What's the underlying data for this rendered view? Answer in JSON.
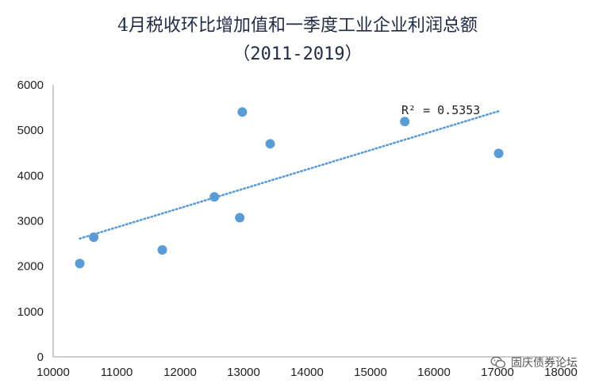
{
  "chart_data": {
    "type": "scatter",
    "title": "4月税收环比增加值和一季度工业企业利润总额",
    "subtitle": "（2011-2019）",
    "xlabel": "",
    "ylabel": "",
    "xlim": [
      10000,
      18000
    ],
    "ylim": [
      0,
      6000
    ],
    "x_ticks": [
      10000,
      11000,
      12000,
      13000,
      14000,
      15000,
      16000,
      17000,
      18000
    ],
    "y_ticks": [
      0,
      1000,
      2000,
      3000,
      4000,
      5000,
      6000
    ],
    "x_tick_labels": [
      "10000",
      "11000",
      "12000",
      "13000",
      "14000",
      "15000",
      "16000",
      "17000",
      "18000"
    ],
    "y_tick_labels": [
      "0",
      "1000",
      "2000",
      "3000",
      "4000",
      "5000",
      "6000"
    ],
    "grid": false,
    "series": [
      {
        "color": "#5b9bd5",
        "points": [
          {
            "x": 10420,
            "y": 2060
          },
          {
            "x": 10640,
            "y": 2640
          },
          {
            "x": 11720,
            "y": 2360
          },
          {
            "x": 12540,
            "y": 3530
          },
          {
            "x": 12940,
            "y": 3070
          },
          {
            "x": 12980,
            "y": 5400
          },
          {
            "x": 13420,
            "y": 4700
          },
          {
            "x": 15540,
            "y": 5190
          },
          {
            "x": 17020,
            "y": 4490
          }
        ]
      }
    ],
    "trendline": {
      "type": "linear",
      "style": "dotted",
      "color": "#5b9bd5",
      "x_range": [
        10420,
        17020
      ],
      "y_at_start": 2610,
      "y_at_end": 5420,
      "r2_label": "R² = 0.5353"
    }
  },
  "watermark": {
    "text": "固庆债券论坛",
    "icon": "wechat-icon"
  }
}
